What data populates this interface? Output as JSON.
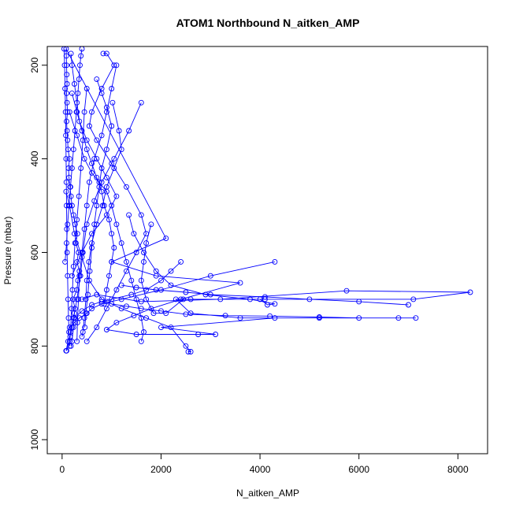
{
  "chart_data": {
    "type": "line",
    "title": "ATOM1 Northbound N_aitken_AMP",
    "xlabel": "N_aitken_AMP",
    "ylabel": "Pressure (mbar)",
    "xlim": [
      -300,
      8600
    ],
    "ylim": [
      1030,
      160
    ],
    "y_axis_inverted": true,
    "x_ticks": [
      0,
      2000,
      4000,
      6000,
      8000
    ],
    "x_tick_labels": [
      "0",
      "2000",
      "4000",
      "6000",
      "8000"
    ],
    "y_ticks": [
      200,
      400,
      600,
      800,
      1000
    ],
    "y_tick_labels": [
      "200",
      "400",
      "600",
      "800",
      "1000"
    ],
    "grid": false,
    "legend": "none",
    "marker": "open-circle",
    "color": "#0000ff",
    "series": [
      {
        "values": [
          [
            80,
            810
          ],
          [
            120,
            790
          ],
          [
            160,
            780
          ],
          [
            200,
            760
          ],
          [
            230,
            740
          ],
          [
            260,
            720
          ],
          [
            220,
            700
          ],
          [
            300,
            680
          ],
          [
            320,
            660
          ],
          [
            350,
            640
          ],
          [
            300,
            620
          ],
          [
            330,
            600
          ],
          [
            280,
            580
          ],
          [
            310,
            560
          ],
          [
            260,
            540
          ],
          [
            230,
            520
          ],
          [
            200,
            500
          ],
          [
            180,
            480
          ],
          [
            160,
            460
          ],
          [
            140,
            440
          ],
          [
            130,
            420
          ],
          [
            150,
            400
          ],
          [
            120,
            380
          ],
          [
            110,
            360
          ],
          [
            100,
            340
          ],
          [
            90,
            320
          ],
          [
            110,
            300
          ],
          [
            100,
            280
          ],
          [
            90,
            260
          ],
          [
            100,
            240
          ],
          [
            95,
            220
          ],
          [
            90,
            200
          ],
          [
            85,
            180
          ],
          [
            80,
            165
          ],
          [
            2100,
            570
          ],
          [
            1000,
            620
          ],
          [
            1900,
            650
          ],
          [
            3600,
            665
          ],
          [
            2400,
            700
          ],
          [
            1800,
            720
          ],
          [
            1450,
            735
          ],
          [
            1100,
            750
          ],
          [
            900,
            765
          ],
          [
            1500,
            775
          ],
          [
            2750,
            775
          ],
          [
            3100,
            775
          ],
          [
            2000,
            760
          ],
          [
            4300,
            740
          ],
          [
            7150,
            740
          ],
          [
            6800,
            740
          ],
          [
            5200,
            740
          ],
          [
            3600,
            740
          ],
          [
            2600,
            730
          ],
          [
            2300,
            700
          ],
          [
            4100,
            700
          ],
          [
            7100,
            700
          ],
          [
            8250,
            685
          ],
          [
            5750,
            682
          ],
          [
            3200,
            700
          ],
          [
            1600,
            705
          ],
          [
            700,
            690
          ],
          [
            400,
            700
          ]
        ]
      },
      {
        "values": [
          [
            200,
            650
          ],
          [
            400,
            600
          ],
          [
            600,
            560
          ],
          [
            900,
            520
          ],
          [
            1100,
            480
          ],
          [
            900,
            440
          ],
          [
            700,
            400
          ],
          [
            500,
            360
          ],
          [
            350,
            320
          ],
          [
            300,
            280
          ],
          [
            250,
            240
          ],
          [
            200,
            200
          ],
          [
            180,
            175
          ]
        ]
      },
      {
        "values": [
          [
            80,
            470
          ],
          [
            150,
            500
          ],
          [
            250,
            560
          ],
          [
            400,
            610
          ],
          [
            550,
            660
          ],
          [
            800,
            700
          ],
          [
            1200,
            720
          ],
          [
            1700,
            740
          ],
          [
            2200,
            760
          ],
          [
            2500,
            800
          ],
          [
            2600,
            812
          ],
          [
            2550,
            812
          ]
        ]
      },
      {
        "values": [
          [
            1600,
            280
          ],
          [
            1350,
            340
          ],
          [
            1050,
            400
          ],
          [
            800,
            450
          ],
          [
            650,
            490
          ],
          [
            500,
            540
          ],
          [
            420,
            600
          ],
          [
            370,
            650
          ],
          [
            300,
            700
          ],
          [
            250,
            730
          ],
          [
            230,
            760
          ],
          [
            200,
            790
          ],
          [
            180,
            800
          ]
        ]
      },
      {
        "values": [
          [
            830,
            175
          ],
          [
            900,
            175
          ],
          [
            1050,
            200
          ],
          [
            800,
            250
          ],
          [
            600,
            300
          ],
          [
            550,
            330
          ],
          [
            700,
            360
          ],
          [
            1000,
            410
          ],
          [
            1300,
            460
          ],
          [
            1600,
            520
          ],
          [
            1700,
            560
          ],
          [
            1500,
            600
          ],
          [
            1300,
            640
          ],
          [
            1100,
            680
          ],
          [
            900,
            720
          ],
          [
            700,
            760
          ],
          [
            500,
            790
          ]
        ]
      },
      {
        "values": [
          [
            1350,
            520
          ],
          [
            1450,
            560
          ],
          [
            1650,
            600
          ],
          [
            1900,
            640
          ],
          [
            2200,
            670
          ],
          [
            2900,
            690
          ],
          [
            3800,
            700
          ],
          [
            4300,
            710
          ],
          [
            4150,
            712
          ],
          [
            4000,
            700
          ]
        ]
      },
      {
        "values": [
          [
            4300,
            620
          ],
          [
            3000,
            650
          ],
          [
            2000,
            680
          ],
          [
            1200,
            700
          ],
          [
            800,
            710
          ],
          [
            600,
            720
          ],
          [
            500,
            730
          ],
          [
            350,
            740
          ],
          [
            250,
            750
          ],
          [
            150,
            760
          ]
        ]
      },
      {
        "values": [
          [
            60,
            620
          ],
          [
            90,
            580
          ],
          [
            110,
            540
          ],
          [
            140,
            500
          ],
          [
            170,
            460
          ],
          [
            200,
            420
          ],
          [
            230,
            380
          ],
          [
            260,
            340
          ],
          [
            290,
            300
          ],
          [
            320,
            260
          ],
          [
            340,
            230
          ],
          [
            360,
            200
          ],
          [
            380,
            180
          ],
          [
            400,
            165
          ]
        ]
      },
      {
        "values": [
          [
            1020,
            280
          ],
          [
            1150,
            340
          ],
          [
            1200,
            380
          ],
          [
            1050,
            420
          ],
          [
            900,
            460
          ],
          [
            820,
            500
          ],
          [
            700,
            540
          ],
          [
            600,
            580
          ],
          [
            540,
            620
          ],
          [
            500,
            660
          ],
          [
            480,
            700
          ],
          [
            450,
            740
          ],
          [
            420,
            770
          ],
          [
            400,
            780
          ]
        ]
      },
      {
        "values": [
          [
            6000,
            740
          ],
          [
            5200,
            738
          ],
          [
            4200,
            736
          ],
          [
            3300,
            735
          ],
          [
            2500,
            732
          ],
          [
            2000,
            725
          ],
          [
            1600,
            720
          ],
          [
            1300,
            715
          ],
          [
            1000,
            710
          ],
          [
            900,
            705
          ]
        ]
      },
      {
        "values": [
          [
            7000,
            712
          ],
          [
            6000,
            705
          ],
          [
            5000,
            700
          ],
          [
            4100,
            695
          ],
          [
            3000,
            690
          ],
          [
            2500,
            685
          ],
          [
            1900,
            680
          ],
          [
            1500,
            675
          ],
          [
            1200,
            670
          ]
        ]
      },
      {
        "values": [
          [
            150,
            300
          ],
          [
            300,
            350
          ],
          [
            450,
            400
          ],
          [
            600,
            430
          ],
          [
            750,
            450
          ],
          [
            900,
            470
          ],
          [
            1000,
            500
          ],
          [
            1100,
            540
          ],
          [
            1200,
            580
          ],
          [
            1300,
            620
          ],
          [
            1400,
            660
          ],
          [
            1500,
            700
          ],
          [
            1600,
            740
          ],
          [
            1650,
            770
          ],
          [
            1600,
            790
          ]
        ]
      },
      {
        "values": [
          [
            500,
            250
          ],
          [
            450,
            300
          ],
          [
            420,
            360
          ],
          [
            380,
            420
          ],
          [
            340,
            480
          ],
          [
            300,
            530
          ],
          [
            260,
            580
          ],
          [
            230,
            630
          ],
          [
            210,
            680
          ],
          [
            190,
            720
          ],
          [
            170,
            770
          ],
          [
            150,
            800
          ]
        ]
      },
      {
        "values": [
          [
            1100,
            200
          ],
          [
            1000,
            250
          ],
          [
            900,
            300
          ],
          [
            800,
            350
          ],
          [
            650,
            400
          ],
          [
            550,
            450
          ],
          [
            500,
            500
          ],
          [
            450,
            550
          ],
          [
            400,
            600
          ],
          [
            350,
            650
          ],
          [
            330,
            700
          ],
          [
            310,
            750
          ],
          [
            300,
            790
          ]
        ]
      },
      {
        "values": [
          [
            700,
            230
          ],
          [
            800,
            260
          ],
          [
            900,
            290
          ],
          [
            1000,
            330
          ],
          [
            900,
            380
          ],
          [
            800,
            420
          ],
          [
            750,
            460
          ],
          [
            700,
            500
          ],
          [
            650,
            540
          ],
          [
            600,
            590
          ],
          [
            560,
            640
          ],
          [
            520,
            690
          ],
          [
            480,
            730
          ],
          [
            460,
            760
          ]
        ]
      },
      {
        "values": [
          [
            40,
            165
          ],
          [
            50,
            200
          ],
          [
            60,
            250
          ],
          [
            70,
            300
          ],
          [
            75,
            350
          ],
          [
            80,
            400
          ],
          [
            85,
            450
          ],
          [
            90,
            500
          ],
          [
            95,
            550
          ],
          [
            100,
            600
          ],
          [
            110,
            650
          ],
          [
            120,
            700
          ],
          [
            130,
            740
          ],
          [
            140,
            770
          ],
          [
            150,
            790
          ],
          [
            90,
            810
          ]
        ]
      },
      {
        "values": [
          [
            1800,
            540
          ],
          [
            1700,
            580
          ],
          [
            1650,
            620
          ],
          [
            1600,
            660
          ],
          [
            1700,
            700
          ],
          [
            1850,
            730
          ],
          [
            2100,
            730
          ],
          [
            2450,
            700
          ],
          [
            2600,
            700
          ]
        ]
      },
      {
        "values": [
          [
            2400,
            620
          ],
          [
            2200,
            640
          ],
          [
            2000,
            660
          ],
          [
            1700,
            680
          ],
          [
            1400,
            690
          ],
          [
            1000,
            700
          ],
          [
            800,
            705
          ],
          [
            600,
            712
          ],
          [
            400,
            725
          ],
          [
            250,
            740
          ]
        ]
      },
      {
        "values": [
          [
            200,
            260
          ],
          [
            300,
            300
          ],
          [
            400,
            340
          ],
          [
            500,
            380
          ],
          [
            600,
            410
          ],
          [
            700,
            440
          ],
          [
            800,
            470
          ],
          [
            850,
            500
          ],
          [
            950,
            530
          ],
          [
            1000,
            560
          ],
          [
            1050,
            590
          ],
          [
            1000,
            620
          ],
          [
            950,
            650
          ],
          [
            900,
            680
          ],
          [
            850,
            710
          ]
        ]
      }
    ]
  }
}
